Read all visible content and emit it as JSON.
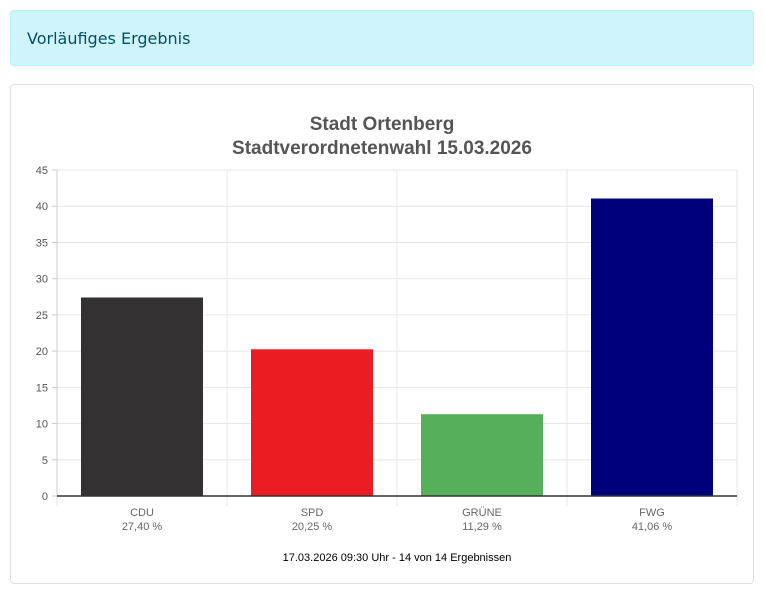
{
  "alert": {
    "text": "Vorläufiges Ergebnis"
  },
  "chart_data": {
    "type": "bar",
    "title": [
      "Stadt Ortenberg",
      "Stadtverordnetenwahl 15.03.2026"
    ],
    "categories": [
      "CDU",
      "SPD",
      "GRÜNE",
      "FWG"
    ],
    "category_labels": [
      "27,40 %",
      "20,25 %",
      "11,29 %",
      "41,06 %"
    ],
    "values": [
      27.4,
      20.25,
      11.29,
      41.06
    ],
    "colors": [
      "#333132",
      "#ec1c24",
      "#56b05a",
      "#00007c"
    ],
    "ylim": [
      0,
      45
    ],
    "yticks": [
      0,
      5,
      10,
      15,
      20,
      25,
      30,
      35,
      40,
      45
    ],
    "grid": true,
    "footnote": "17.03.2026 09:30 Uhr - 14 von 14 Ergebnissen"
  }
}
